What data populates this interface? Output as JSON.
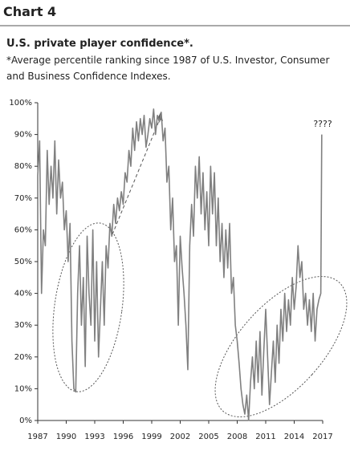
{
  "header": "Chart 4",
  "chart_data": {
    "type": "line",
    "title": "U.S. private player confidence*.",
    "subtitle": [
      "*Average percentile ranking since 1987 of U.S. Investor, Consumer",
      "and Business Confidence Indexes."
    ],
    "annotation": "????",
    "x": [
      1987,
      1987.2,
      1987.4,
      1987.6,
      1987.8,
      1988,
      1988.2,
      1988.4,
      1988.6,
      1988.8,
      1989,
      1989.2,
      1989.4,
      1989.6,
      1989.8,
      1990,
      1990.2,
      1990.4,
      1990.6,
      1990.8,
      1991,
      1991.2,
      1991.4,
      1991.6,
      1991.8,
      1992,
      1992.2,
      1992.4,
      1992.6,
      1992.8,
      1993,
      1993.2,
      1993.4,
      1993.6,
      1993.8,
      1994,
      1994.2,
      1994.4,
      1994.6,
      1994.8,
      1995,
      1995.2,
      1995.4,
      1995.6,
      1995.8,
      1996,
      1996.2,
      1996.4,
      1996.6,
      1996.8,
      1997,
      1997.2,
      1997.4,
      1997.6,
      1997.8,
      1998,
      1998.2,
      1998.4,
      1998.6,
      1998.8,
      1999,
      1999.2,
      1999.4,
      1999.6,
      1999.8,
      2000,
      2000.2,
      2000.4,
      2000.6,
      2000.8,
      2001,
      2001.2,
      2001.4,
      2001.6,
      2001.8,
      2002,
      2002.2,
      2002.4,
      2002.6,
      2002.8,
      2003,
      2003.2,
      2003.4,
      2003.6,
      2003.8,
      2004,
      2004.2,
      2004.4,
      2004.6,
      2004.8,
      2005,
      2005.2,
      2005.4,
      2005.6,
      2005.8,
      2006,
      2006.2,
      2006.4,
      2006.6,
      2006.8,
      2007,
      2007.2,
      2007.4,
      2007.6,
      2007.8,
      2008,
      2008.2,
      2008.4,
      2008.6,
      2008.8,
      2009,
      2009.2,
      2009.4,
      2009.6,
      2009.8,
      2010,
      2010.2,
      2010.4,
      2010.6,
      2010.8,
      2011,
      2011.2,
      2011.4,
      2011.6,
      2011.8,
      2012,
      2012.2,
      2012.4,
      2012.6,
      2012.8,
      2013,
      2013.2,
      2013.4,
      2013.6,
      2013.8,
      2014,
      2014.2,
      2014.4,
      2014.6,
      2014.8,
      2015,
      2015.2,
      2015.4,
      2015.6,
      2015.8,
      2016,
      2016.2,
      2016.4,
      2016.6,
      2016.8,
      2016.9
    ],
    "series": [
      {
        "color": "#808080",
        "values": [
          77,
          88,
          40,
          60,
          55,
          85,
          68,
          80,
          70,
          88,
          65,
          82,
          70,
          75,
          60,
          66,
          50,
          62,
          25,
          10,
          9,
          40,
          55,
          30,
          45,
          17,
          58,
          40,
          30,
          60,
          25,
          50,
          20,
          35,
          50,
          30,
          55,
          48,
          62,
          58,
          68,
          62,
          70,
          66,
          72,
          68,
          78,
          75,
          85,
          80,
          92,
          85,
          94,
          88,
          95,
          90,
          96,
          86,
          90,
          95,
          92,
          98,
          90,
          96,
          94,
          97,
          88,
          92,
          75,
          80,
          60,
          70,
          50,
          55,
          30,
          58,
          48,
          40,
          30,
          16,
          55,
          68,
          58,
          80,
          70,
          83,
          65,
          78,
          60,
          72,
          55,
          80,
          65,
          78,
          55,
          70,
          50,
          62,
          45,
          60,
          48,
          62,
          40,
          45,
          30,
          25,
          18,
          10,
          5,
          2,
          8,
          0,
          12,
          20,
          10,
          25,
          12,
          28,
          8,
          22,
          35,
          20,
          5,
          15,
          25,
          12,
          30,
          18,
          35,
          25,
          40,
          28,
          38,
          30,
          45,
          35,
          42,
          55,
          45,
          50,
          35,
          40,
          30,
          38,
          28,
          40,
          25,
          35,
          38,
          40,
          90
        ]
      }
    ],
    "xlim": [
      1987,
      2017
    ],
    "xticks": [
      1987,
      1990,
      1993,
      1996,
      1999,
      2002,
      2005,
      2008,
      2011,
      2014,
      2017
    ],
    "ylim": [
      0,
      100
    ],
    "yticks": [
      {
        "value": 0,
        "label": "0%"
      },
      {
        "value": 10,
        "label": "10%"
      },
      {
        "value": 20,
        "label": "20%"
      },
      {
        "value": 30,
        "label": "30%"
      },
      {
        "value": 40,
        "label": "40%"
      },
      {
        "value": 50,
        "label": "50%"
      },
      {
        "value": 60,
        "label": "60%"
      },
      {
        "value": 70,
        "label": "70%"
      },
      {
        "value": 80,
        "label": "80%"
      },
      {
        "value": 90,
        "label": "90%"
      },
      {
        "value": 100,
        "label": "100%"
      }
    ]
  }
}
